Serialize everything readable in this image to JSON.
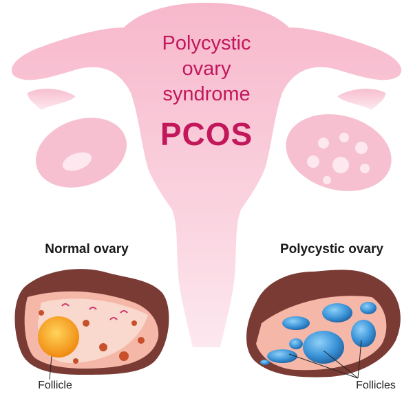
{
  "title": {
    "line1": "Polycystic",
    "line2": "ovary",
    "line3": "syndrome",
    "acronym": "PCOS"
  },
  "panels": {
    "normal": {
      "label": "Normal ovary",
      "callout": "Follicle"
    },
    "polycystic": {
      "label": "Polycystic ovary",
      "callout": "Follicles"
    }
  },
  "colors": {
    "title": "#c2185b",
    "uterus": "#f8c6d6",
    "ovary_outer": "#7a3b35",
    "ovary_tissue": "#f5b8a8",
    "follicle_normal": "#f59a14",
    "cyst": "#3b94d8"
  }
}
